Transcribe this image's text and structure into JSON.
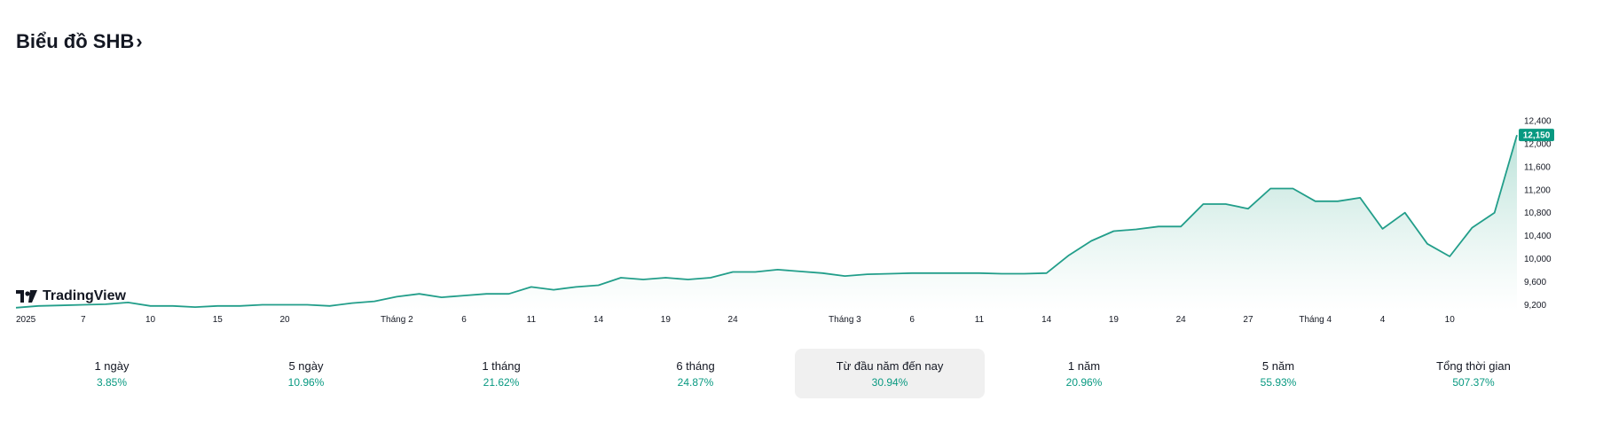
{
  "header": {
    "title": "Biểu đồ SHB",
    "chevron": "›"
  },
  "logo": {
    "text": "TradingView",
    "icon": "tradingview-logo-icon"
  },
  "colors": {
    "line": "#229e8a",
    "area_top": "#b6e0d6",
    "area_bottom": "#ffffff",
    "badge": "#089981",
    "positive": "#089981",
    "axis_text": "#131722"
  },
  "chart_data": {
    "type": "area",
    "title": "",
    "xlabel": "",
    "ylabel": "",
    "ylim": [
      9100,
      12800
    ],
    "y_ticks": [
      9200,
      9600,
      10000,
      10400,
      10800,
      11200,
      11600,
      12000,
      12400
    ],
    "y_tick_labels": [
      "9,200",
      "9,600",
      "10,000",
      "10,400",
      "10,800",
      "11,200",
      "11,600",
      "12,000",
      "12,400"
    ],
    "last_price_label": "12,150",
    "last_price": 12150,
    "x_tick_labels": [
      {
        "label": "2025",
        "index": 0
      },
      {
        "label": "7",
        "index": 3
      },
      {
        "label": "10",
        "index": 6
      },
      {
        "label": "15",
        "index": 9
      },
      {
        "label": "20",
        "index": 12
      },
      {
        "label": "Tháng 2",
        "index": 17
      },
      {
        "label": "6",
        "index": 20
      },
      {
        "label": "11",
        "index": 23
      },
      {
        "label": "14",
        "index": 26
      },
      {
        "label": "19",
        "index": 29
      },
      {
        "label": "24",
        "index": 32
      },
      {
        "label": "Tháng 3",
        "index": 37
      },
      {
        "label": "6",
        "index": 40
      },
      {
        "label": "11",
        "index": 43
      },
      {
        "label": "14",
        "index": 46
      },
      {
        "label": "19",
        "index": 49
      },
      {
        "label": "24",
        "index": 52
      },
      {
        "label": "27",
        "index": 55
      },
      {
        "label": "Tháng 4",
        "index": 58
      },
      {
        "label": "4",
        "index": 61
      },
      {
        "label": "10",
        "index": 64
      }
    ],
    "values": [
      9150,
      9180,
      9190,
      9200,
      9210,
      9240,
      9180,
      9180,
      9160,
      9180,
      9180,
      9200,
      9200,
      9200,
      9180,
      9230,
      9260,
      9340,
      9390,
      9330,
      9360,
      9390,
      9390,
      9510,
      9460,
      9510,
      9540,
      9670,
      9640,
      9670,
      9640,
      9670,
      9770,
      9770,
      9810,
      9780,
      9750,
      9700,
      9730,
      9740,
      9750,
      9750,
      9750,
      9750,
      9740,
      9740,
      9750,
      10060,
      10310,
      10480,
      10510,
      10560,
      10560,
      10950,
      10950,
      10870,
      11220,
      11220,
      11000,
      11000,
      11060,
      10520,
      10800,
      10260,
      10040,
      10540,
      10800,
      12150
    ]
  },
  "periods": [
    {
      "label": "1 ngày",
      "change": "3.85%"
    },
    {
      "label": "5 ngày",
      "change": "10.96%"
    },
    {
      "label": "1 tháng",
      "change": "21.62%"
    },
    {
      "label": "6 tháng",
      "change": "24.87%"
    },
    {
      "label": "Từ đầu năm đến nay",
      "change": "30.94%",
      "active": true
    },
    {
      "label": "1 năm",
      "change": "20.96%"
    },
    {
      "label": "5 năm",
      "change": "55.93%"
    },
    {
      "label": "Tổng thời gian",
      "change": "507.37%"
    }
  ]
}
